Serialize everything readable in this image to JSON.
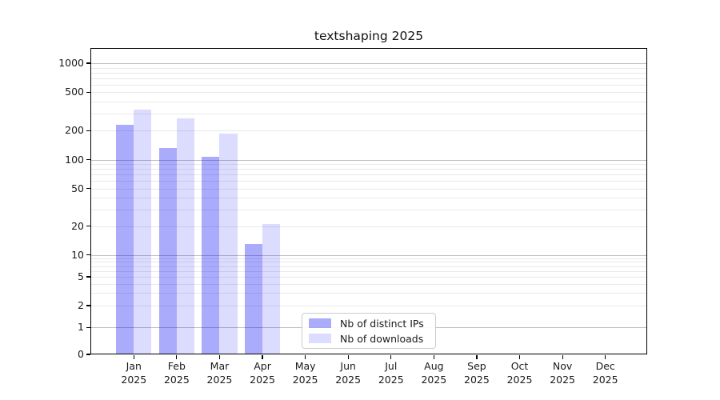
{
  "figure": {
    "background": "#ffffff",
    "text_color": "#1a1a1a"
  },
  "chart_data": {
    "type": "bar",
    "title": "textshaping 2025",
    "categories": [
      "Jan",
      "Feb",
      "Mar",
      "Apr",
      "May",
      "Jun",
      "Jul",
      "Aug",
      "Sep",
      "Oct",
      "Nov",
      "Dec"
    ],
    "year_label": "2025",
    "series": [
      {
        "name": "Nb of distinct IPs",
        "color": "rgba(10,10,245,0.34)",
        "color_hex_on_white": "#a9a9f8",
        "values": [
          228,
          132,
          107,
          13,
          0,
          0,
          0,
          0,
          0,
          0,
          0,
          0
        ]
      },
      {
        "name": "Nb of downloads",
        "color": "rgba(10,10,245,0.14)",
        "color_hex_on_white": "#dcdcf9",
        "values": [
          332,
          270,
          186,
          21,
          0,
          0,
          0,
          0,
          0,
          0,
          0,
          0
        ]
      }
    ],
    "xlabel": "",
    "ylabel": "",
    "yscale": "symlog",
    "yticks": [
      0,
      1,
      2,
      5,
      10,
      20,
      50,
      100,
      200,
      500,
      1000
    ],
    "ylim": [
      0,
      1500
    ],
    "grid": {
      "enabled": true,
      "major_color": "#c0c0c0",
      "minor_color": "#e9e9e9"
    },
    "legend": {
      "position": "lower center"
    }
  }
}
